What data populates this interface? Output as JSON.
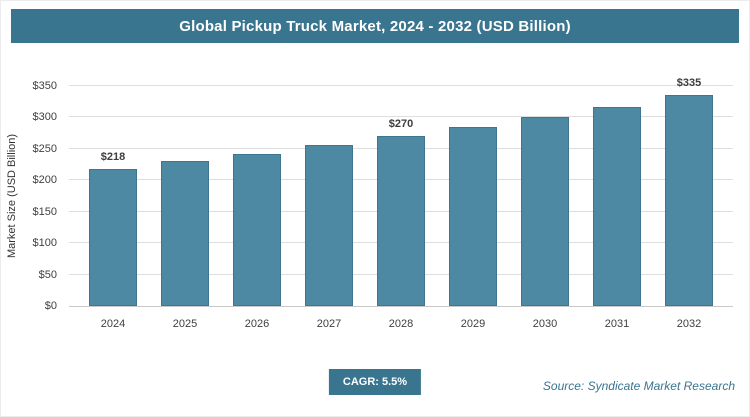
{
  "header": {
    "title": "Global Pickup Truck Market, 2024 - 2032 (USD Billion)"
  },
  "chart_data": {
    "type": "bar",
    "title": "Global Pickup Truck Market, 2024 - 2032 (USD Billion)",
    "categories": [
      "2024",
      "2025",
      "2026",
      "2027",
      "2028",
      "2029",
      "2030",
      "2031",
      "2032"
    ],
    "values": [
      218,
      230,
      242,
      256,
      270,
      285,
      300,
      317,
      335
    ],
    "value_labels": [
      "$218",
      "",
      "",
      "",
      "$270",
      "",
      "",
      "",
      "$335"
    ],
    "xlabel": "",
    "ylabel": "Market Size (USD Billion)",
    "ylim": [
      0,
      350
    ],
    "ytick_values": [
      0,
      50,
      100,
      150,
      200,
      250,
      300,
      350
    ],
    "ytick_labels": [
      "$0",
      "$50",
      "$100",
      "$150",
      "$200",
      "$250",
      "$300",
      "$350"
    ],
    "grid": true,
    "legend": "none",
    "bar_color": "#4e89a4"
  },
  "footer": {
    "cagr_label": "CAGR: 5.5%",
    "source": "Source: Syndicate Market Research"
  },
  "colors": {
    "accent": "#39758f",
    "bar": "#4e89a4",
    "grid": "#dedede"
  }
}
